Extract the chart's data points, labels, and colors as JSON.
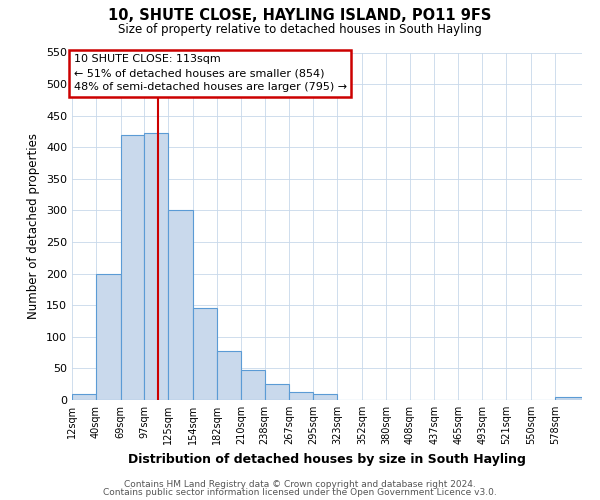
{
  "title": "10, SHUTE CLOSE, HAYLING ISLAND, PO11 9FS",
  "subtitle": "Size of property relative to detached houses in South Hayling",
  "xlabel": "Distribution of detached houses by size in South Hayling",
  "ylabel": "Number of detached properties",
  "bin_labels": [
    "12sqm",
    "40sqm",
    "69sqm",
    "97sqm",
    "125sqm",
    "154sqm",
    "182sqm",
    "210sqm",
    "238sqm",
    "267sqm",
    "295sqm",
    "323sqm",
    "352sqm",
    "380sqm",
    "408sqm",
    "437sqm",
    "465sqm",
    "493sqm",
    "521sqm",
    "550sqm",
    "578sqm"
  ],
  "bin_edges": [
    12,
    40,
    69,
    97,
    125,
    154,
    182,
    210,
    238,
    267,
    295,
    323,
    352,
    380,
    408,
    437,
    465,
    493,
    521,
    550,
    578,
    610
  ],
  "bar_heights": [
    10,
    200,
    420,
    422,
    300,
    145,
    78,
    48,
    25,
    13,
    10,
    0,
    0,
    0,
    0,
    0,
    0,
    0,
    0,
    0,
    5
  ],
  "bar_color": "#c9d9ec",
  "bar_edge_color": "#5b9bd5",
  "grid_color": "#c8d8ea",
  "ylim": [
    0,
    550
  ],
  "yticks": [
    0,
    50,
    100,
    150,
    200,
    250,
    300,
    350,
    400,
    450,
    500,
    550
  ],
  "property_line_x": 113,
  "property_line_color": "#cc0000",
  "annotation_title": "10 SHUTE CLOSE: 113sqm",
  "annotation_line1": "← 51% of detached houses are smaller (854)",
  "annotation_line2": "48% of semi-detached houses are larger (795) →",
  "annotation_box_color": "#cc0000",
  "footer1": "Contains HM Land Registry data © Crown copyright and database right 2024.",
  "footer2": "Contains public sector information licensed under the Open Government Licence v3.0."
}
